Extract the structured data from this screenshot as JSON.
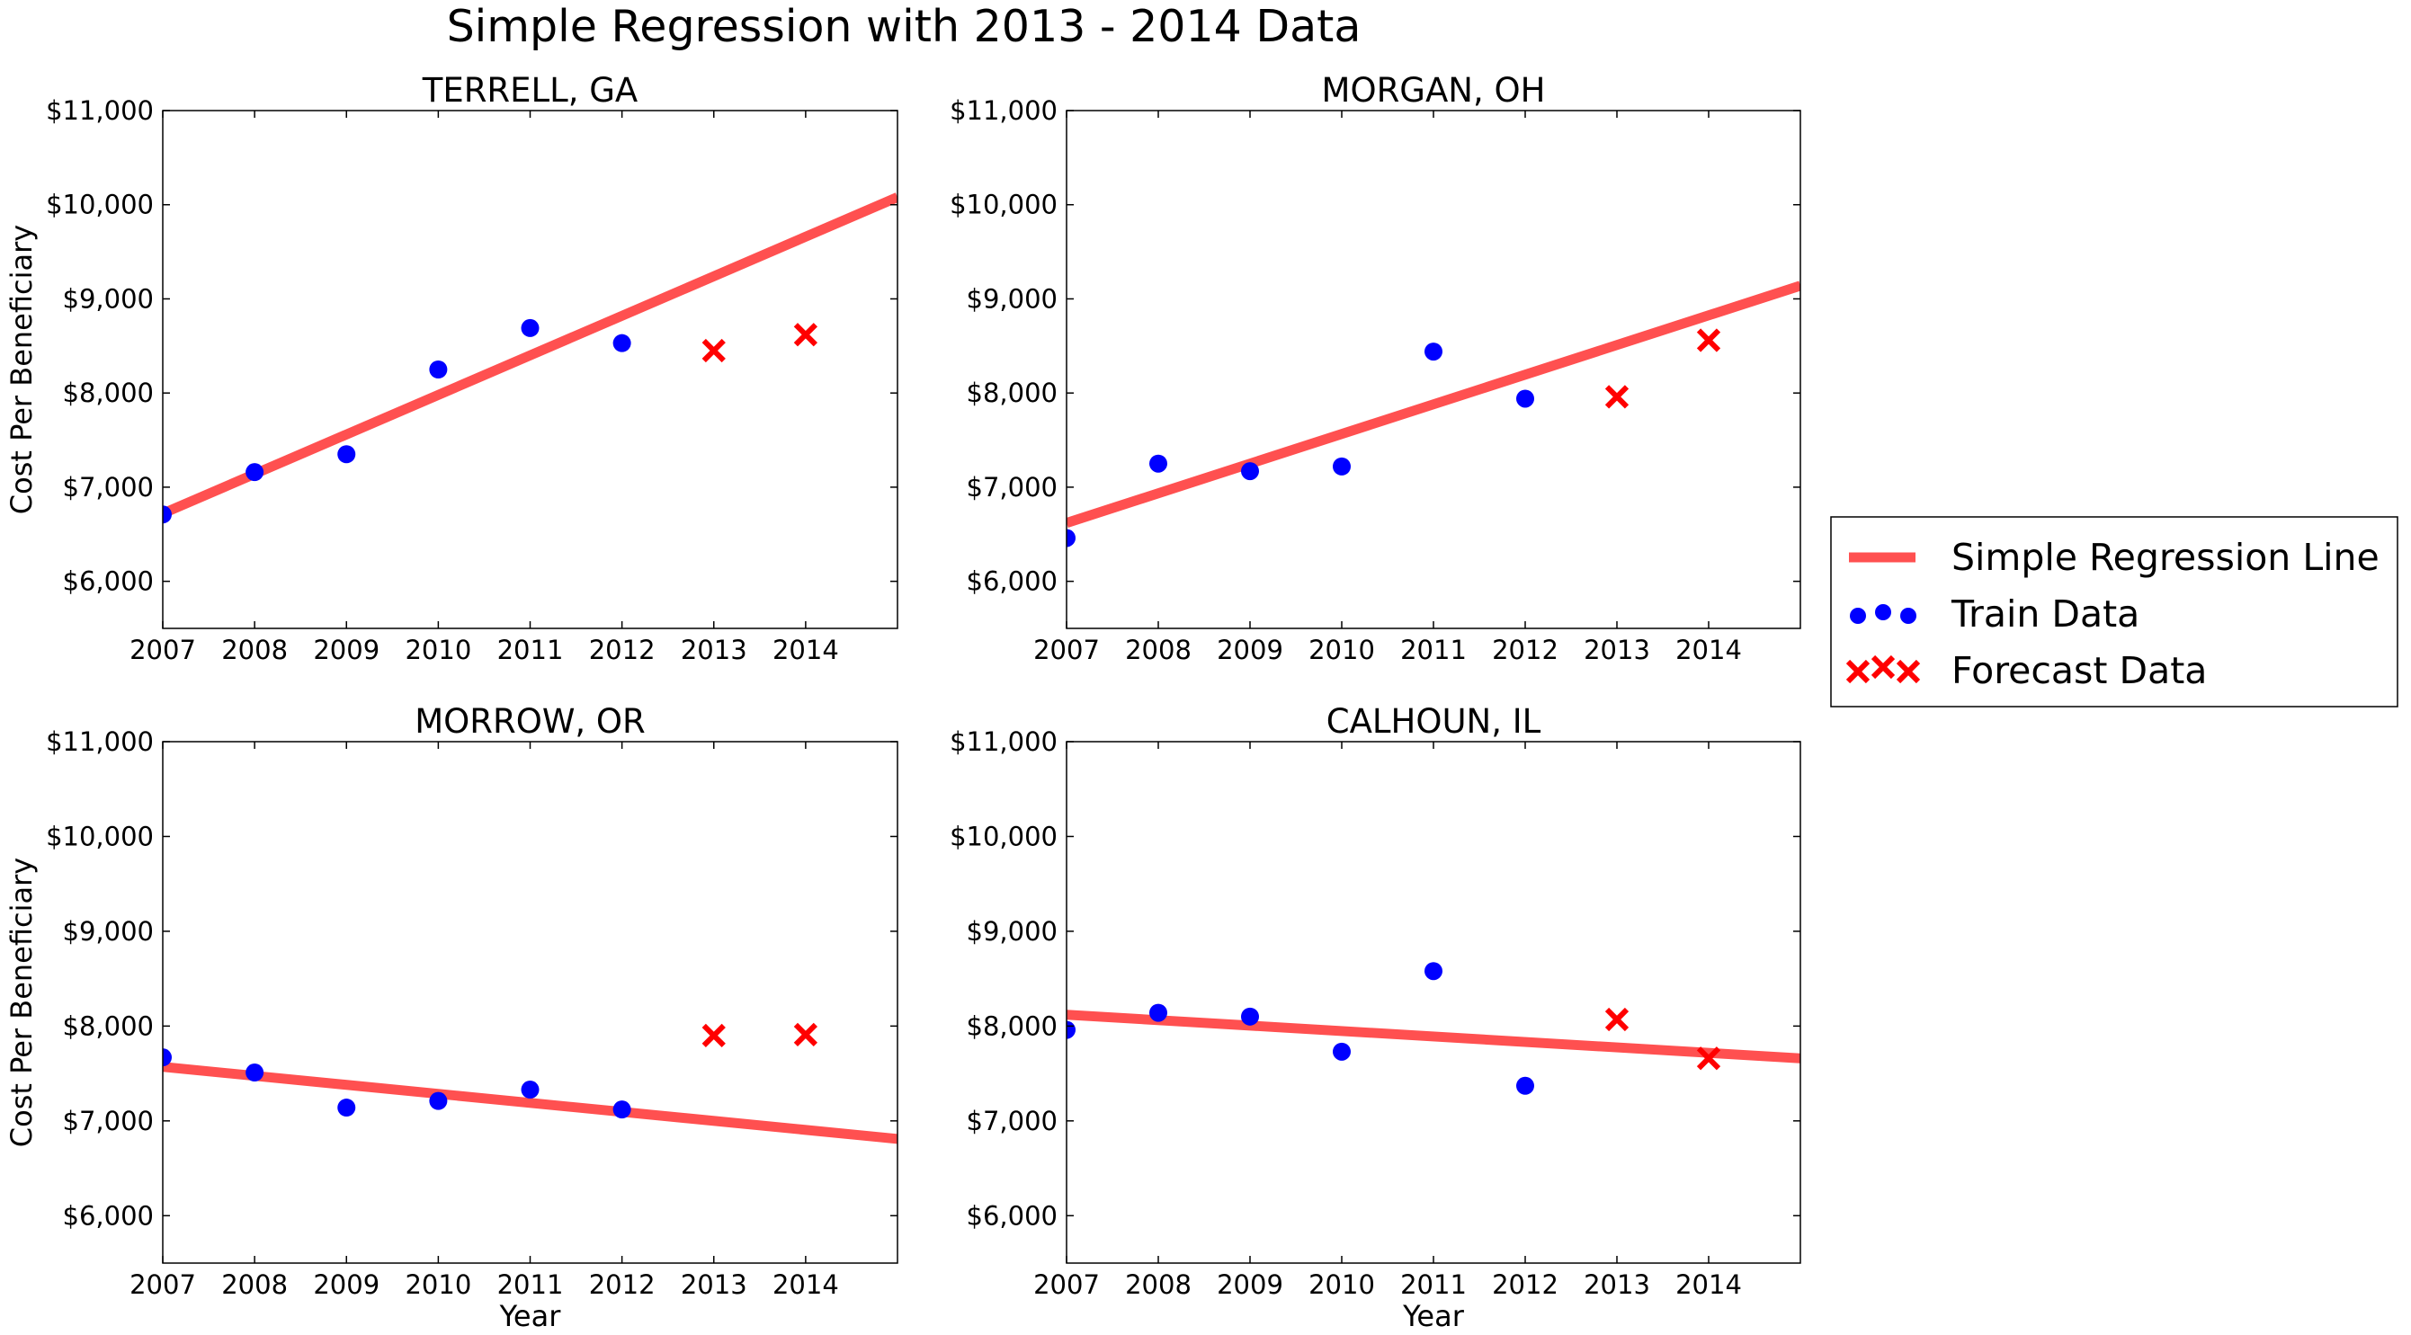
{
  "figure": {
    "title": "Simple Regression with 2013 - 2014 Data"
  },
  "colors": {
    "regression": "#ff5050",
    "train": "#0000ff",
    "forecast": "#ff0000",
    "axes": "#000000"
  },
  "legend": {
    "placement": "right",
    "items": [
      {
        "label": "Simple Regression Line",
        "marker": "line"
      },
      {
        "label": "Train Data",
        "marker": "circles"
      },
      {
        "label": "Forecast Data",
        "marker": "crosses"
      }
    ]
  },
  "chart_data": [
    {
      "type": "scatter",
      "title": "TERRELL, GA",
      "xlabel": "",
      "ylabel": "Cost Per Beneficiary",
      "xlim": [
        2007,
        2015
      ],
      "ylim": [
        5500,
        11000
      ],
      "xticks": [
        "2007",
        "2008",
        "2009",
        "2010",
        "2011",
        "2012",
        "2013",
        "2014"
      ],
      "yticks": [
        "$6,000",
        "$7,000",
        "$8,000",
        "$9,000",
        "$10,000",
        "$11,000"
      ],
      "yticks_values": [
        6000,
        7000,
        8000,
        9000,
        10000,
        11000
      ],
      "series": [
        {
          "name": "Simple Regression Line",
          "kind": "line",
          "x": [
            2007,
            2015
          ],
          "y": [
            6720,
            10080
          ]
        },
        {
          "name": "Train Data",
          "kind": "points",
          "x": [
            2007,
            2008,
            2009,
            2010,
            2011,
            2012
          ],
          "y": [
            6710,
            7160,
            7350,
            8250,
            8690,
            8530
          ]
        },
        {
          "name": "Forecast Data",
          "kind": "crosses",
          "x": [
            2013,
            2014
          ],
          "y": [
            8450,
            8620
          ]
        }
      ]
    },
    {
      "type": "scatter",
      "title": "MORGAN, OH",
      "xlabel": "",
      "ylabel": "",
      "xlim": [
        2007,
        2015
      ],
      "ylim": [
        5500,
        11000
      ],
      "xticks": [
        "2007",
        "2008",
        "2009",
        "2010",
        "2011",
        "2012",
        "2013",
        "2014"
      ],
      "yticks": [
        "$6,000",
        "$7,000",
        "$8,000",
        "$9,000",
        "$10,000",
        "$11,000"
      ],
      "yticks_values": [
        6000,
        7000,
        8000,
        9000,
        10000,
        11000
      ],
      "series": [
        {
          "name": "Simple Regression Line",
          "kind": "line",
          "x": [
            2007,
            2015
          ],
          "y": [
            6620,
            9140
          ]
        },
        {
          "name": "Train Data",
          "kind": "points",
          "x": [
            2007,
            2008,
            2009,
            2010,
            2011,
            2012
          ],
          "y": [
            6460,
            7250,
            7170,
            7220,
            8440,
            7940
          ]
        },
        {
          "name": "Forecast Data",
          "kind": "crosses",
          "x": [
            2013,
            2014
          ],
          "y": [
            7960,
            8560
          ]
        }
      ]
    },
    {
      "type": "scatter",
      "title": "MORROW, OR",
      "xlabel": "Year",
      "ylabel": "Cost Per Beneficiary",
      "xlim": [
        2007,
        2015
      ],
      "ylim": [
        5500,
        11000
      ],
      "xticks": [
        "2007",
        "2008",
        "2009",
        "2010",
        "2011",
        "2012",
        "2013",
        "2014"
      ],
      "yticks": [
        "$6,000",
        "$7,000",
        "$8,000",
        "$9,000",
        "$10,000",
        "$11,000"
      ],
      "yticks_values": [
        6000,
        7000,
        8000,
        9000,
        10000,
        11000
      ],
      "series": [
        {
          "name": "Simple Regression Line",
          "kind": "line",
          "x": [
            2007,
            2015
          ],
          "y": [
            7570,
            6810
          ]
        },
        {
          "name": "Train Data",
          "kind": "points",
          "x": [
            2007,
            2008,
            2009,
            2010,
            2011,
            2012
          ],
          "y": [
            7670,
            7510,
            7140,
            7210,
            7330,
            7120
          ]
        },
        {
          "name": "Forecast Data",
          "kind": "crosses",
          "x": [
            2013,
            2014
          ],
          "y": [
            7900,
            7910
          ]
        }
      ]
    },
    {
      "type": "scatter",
      "title": "CALHOUN, IL",
      "xlabel": "Year",
      "ylabel": "",
      "xlim": [
        2007,
        2015
      ],
      "ylim": [
        5500,
        11000
      ],
      "xticks": [
        "2007",
        "2008",
        "2009",
        "2010",
        "2011",
        "2012",
        "2013",
        "2014"
      ],
      "yticks": [
        "$6,000",
        "$7,000",
        "$8,000",
        "$9,000",
        "$10,000",
        "$11,000"
      ],
      "yticks_values": [
        6000,
        7000,
        8000,
        9000,
        10000,
        11000
      ],
      "series": [
        {
          "name": "Simple Regression Line",
          "kind": "line",
          "x": [
            2007,
            2015
          ],
          "y": [
            8120,
            7660
          ]
        },
        {
          "name": "Train Data",
          "kind": "points",
          "x": [
            2007,
            2008,
            2009,
            2010,
            2011,
            2012
          ],
          "y": [
            7960,
            8140,
            8100,
            7730,
            8580,
            7370
          ]
        },
        {
          "name": "Forecast Data",
          "kind": "crosses",
          "x": [
            2013,
            2014
          ],
          "y": [
            8070,
            7660
          ]
        }
      ]
    }
  ]
}
